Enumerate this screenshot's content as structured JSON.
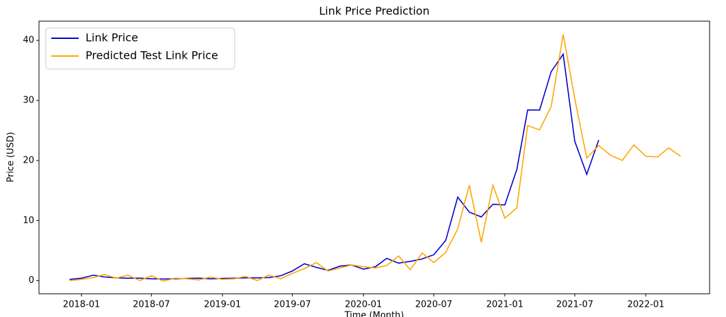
{
  "chart_data": {
    "type": "line",
    "title": "Link Price Prediction",
    "x_label": "Time (Month)",
    "y_label": "Price (USD)",
    "x": [
      "2017-12",
      "2018-01",
      "2018-02",
      "2018-03",
      "2018-04",
      "2018-05",
      "2018-06",
      "2018-07",
      "2018-08",
      "2018-09",
      "2018-10",
      "2018-11",
      "2018-12",
      "2019-01",
      "2019-02",
      "2019-03",
      "2019-04",
      "2019-05",
      "2019-06",
      "2019-07",
      "2019-08",
      "2019-09",
      "2019-10",
      "2019-11",
      "2019-12",
      "2020-01",
      "2020-02",
      "2020-03",
      "2020-04",
      "2020-05",
      "2020-06",
      "2020-07",
      "2020-08",
      "2020-09",
      "2020-10",
      "2020-11",
      "2020-12",
      "2021-01",
      "2021-02",
      "2021-03",
      "2021-04",
      "2021-05",
      "2021-06",
      "2021-07",
      "2021-08",
      "2021-09",
      "2021-10",
      "2021-11",
      "2021-12",
      "2022-01",
      "2022-02",
      "2022-03",
      "2022-04"
    ],
    "series": [
      {
        "name": "Link Price",
        "color": "#0000cc",
        "values": [
          0.2,
          0.4,
          0.9,
          0.6,
          0.45,
          0.4,
          0.4,
          0.3,
          0.25,
          0.3,
          0.35,
          0.4,
          0.3,
          0.35,
          0.4,
          0.45,
          0.45,
          0.5,
          0.8,
          1.6,
          2.8,
          2.2,
          1.7,
          2.4,
          2.6,
          1.9,
          2.3,
          3.7,
          2.9,
          3.2,
          3.6,
          4.3,
          6.7,
          13.9,
          11.4,
          10.6,
          12.7,
          12.6,
          18.5,
          28.4,
          28.4,
          34.8,
          37.7,
          23.2,
          17.7,
          23.4,
          null,
          null,
          null,
          null,
          null,
          null,
          null
        ]
      },
      {
        "name": "Predicted Test Link Price",
        "color": "#ffa500",
        "values": [
          0.0,
          0.2,
          0.5,
          1.0,
          0.4,
          0.9,
          0.0,
          0.8,
          -0.1,
          0.4,
          0.3,
          0.1,
          0.6,
          0.2,
          0.3,
          0.7,
          0.0,
          0.9,
          0.3,
          1.2,
          2.0,
          3.0,
          1.6,
          2.1,
          2.6,
          2.3,
          2.1,
          2.5,
          4.1,
          1.8,
          4.6,
          3.0,
          4.7,
          8.6,
          15.9,
          6.4,
          15.9,
          10.4,
          12.1,
          25.8,
          25.1,
          29.0,
          41.0,
          30.3,
          20.4,
          22.5,
          20.9,
          20.0,
          22.6,
          20.7,
          20.6,
          22.1,
          20.7
        ]
      }
    ],
    "xlim": [
      "2017-09-13",
      "2022-06-15"
    ],
    "xticks": [
      "2018-01",
      "2018-07",
      "2019-01",
      "2019-07",
      "2020-01",
      "2020-07",
      "2021-01",
      "2021-07",
      "2022-01"
    ],
    "ylim": [
      -2.2,
      43.2
    ],
    "yticks": [
      0,
      10,
      20,
      30,
      40
    ],
    "grid": false,
    "legend": "upper-left"
  }
}
